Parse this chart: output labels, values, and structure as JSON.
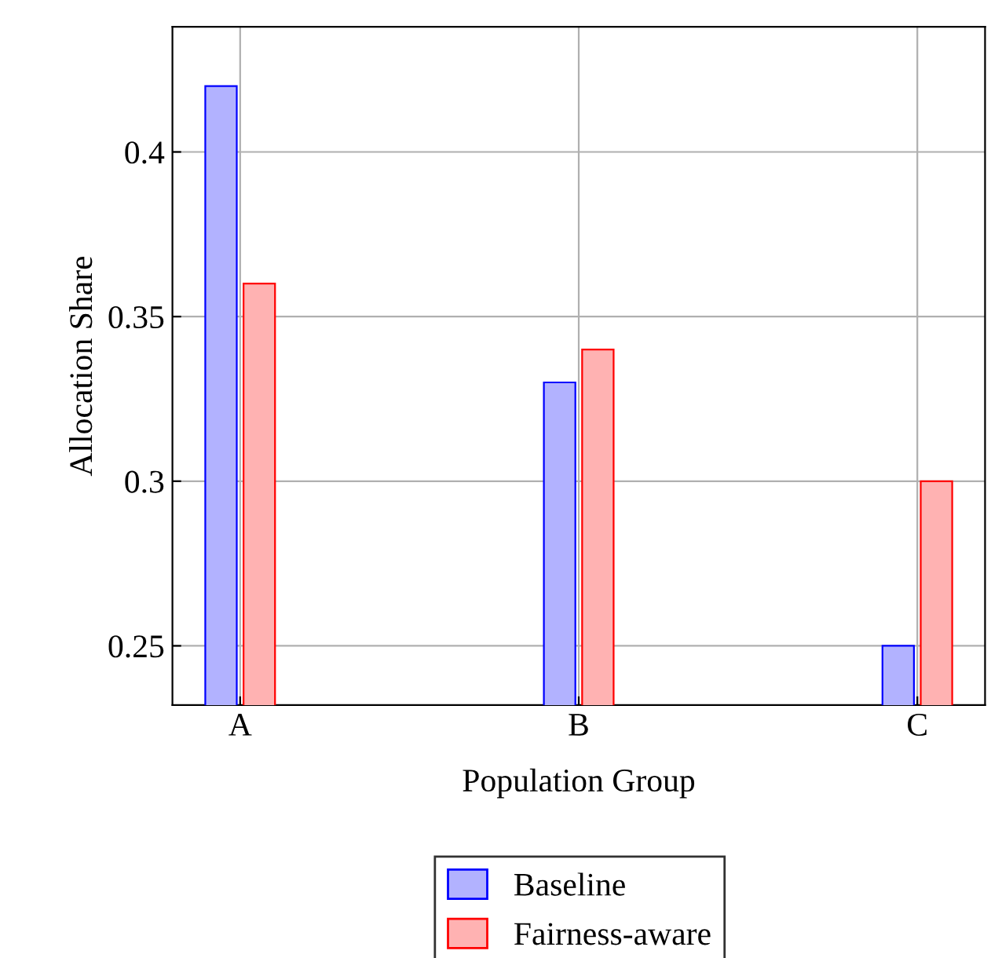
{
  "chart_data": {
    "type": "bar",
    "xlabel": "Population Group",
    "ylabel": "Allocation Share",
    "categories": [
      "A",
      "B",
      "C"
    ],
    "series": [
      {
        "name": "Baseline",
        "color": "#0000ff",
        "values": [
          0.42,
          0.33,
          0.25
        ]
      },
      {
        "name": "Fairness-aware",
        "color": "#ff0000",
        "values": [
          0.36,
          0.34,
          0.3
        ]
      }
    ],
    "ylim": [
      0.232,
      0.438
    ],
    "yticks": [
      0.25,
      0.3,
      0.35,
      0.4
    ],
    "grid": true,
    "legend": "bottom"
  }
}
